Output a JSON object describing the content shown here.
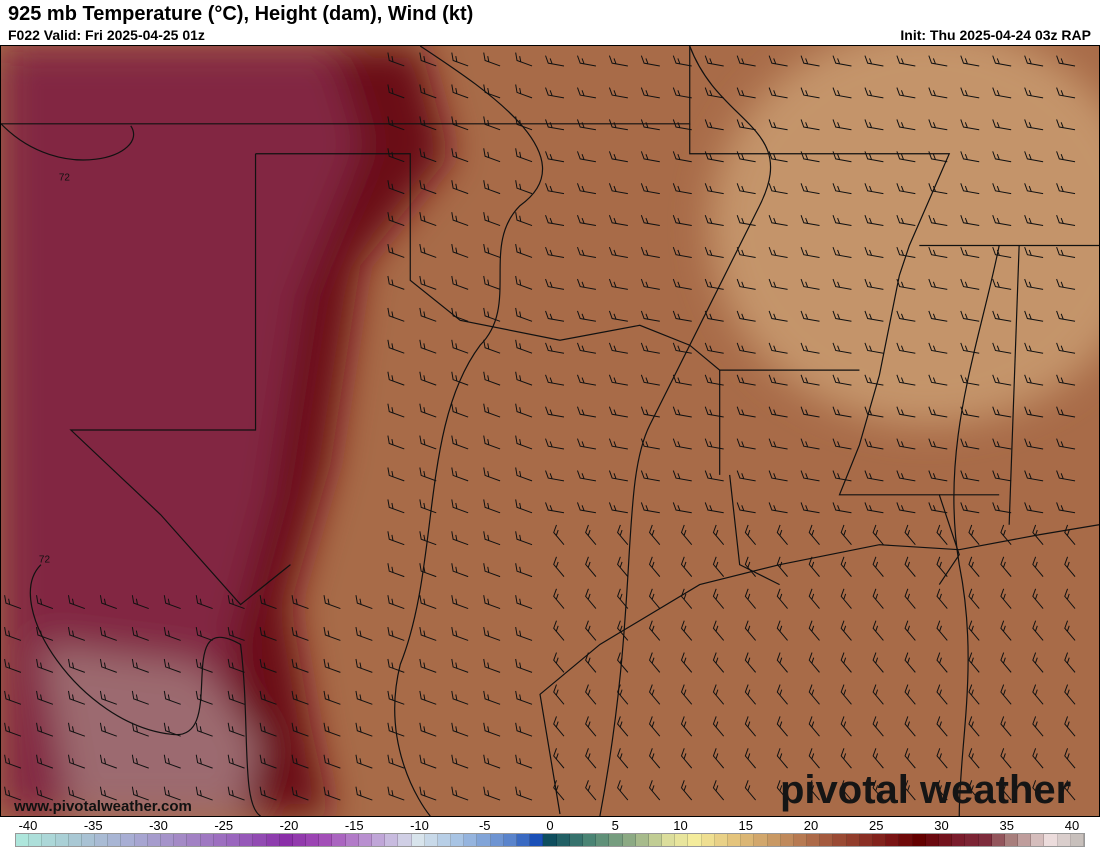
{
  "header": {
    "title": "925 mb Temperature (°C), Height (dam), Wind (kt)",
    "valid": "F022 Valid: Fri 2025-04-25 01z",
    "init": "Init: Thu 2025-04-24 03z RAP"
  },
  "map": {
    "contour_labels": [
      "72",
      "72"
    ],
    "base_color": "#a86b48",
    "east_color": "#c4946a",
    "west_color": "#822643",
    "band_color": "#6b0b14",
    "southwest_color": "#9c6b70"
  },
  "footer": {
    "website": "www.pivotalweather.com",
    "brand": "pivotal weather"
  },
  "colorbar": {
    "ticks": [
      "-40",
      "-35",
      "-30",
      "-25",
      "-20",
      "-15",
      "-10",
      "-5",
      "0",
      "5",
      "10",
      "15",
      "20",
      "25",
      "30",
      "35",
      "40"
    ],
    "scale": [
      [
        -40,
        "#aee6dc"
      ],
      [
        -36,
        "#a9c8d4"
      ],
      [
        -32,
        "#a8aed4"
      ],
      [
        -28,
        "#a48ac6"
      ],
      [
        -24,
        "#9a66be"
      ],
      [
        -20,
        "#8a2fa8"
      ],
      [
        -17,
        "#a34fb8"
      ],
      [
        -13,
        "#c0a6d8"
      ],
      [
        -10,
        "#d8e4ec"
      ],
      [
        -7,
        "#a8c4e4"
      ],
      [
        -3,
        "#5a84cc"
      ],
      [
        -1,
        "#1a50b8"
      ],
      [
        0,
        "#0e4e5e"
      ],
      [
        3,
        "#4a8474"
      ],
      [
        6,
        "#8caa84"
      ],
      [
        9,
        "#dcde9c"
      ],
      [
        11,
        "#f4ec9c"
      ],
      [
        14,
        "#e4c47c"
      ],
      [
        18,
        "#c08a5c"
      ],
      [
        22,
        "#9a4a34"
      ],
      [
        26,
        "#7a1414"
      ],
      [
        28,
        "#640000"
      ],
      [
        31,
        "#7a1c2c"
      ],
      [
        33,
        "#7e2c3c"
      ],
      [
        35,
        "#a87e7c"
      ],
      [
        38,
        "#ecdcdc"
      ],
      [
        40,
        "#c8c0bc"
      ]
    ]
  }
}
